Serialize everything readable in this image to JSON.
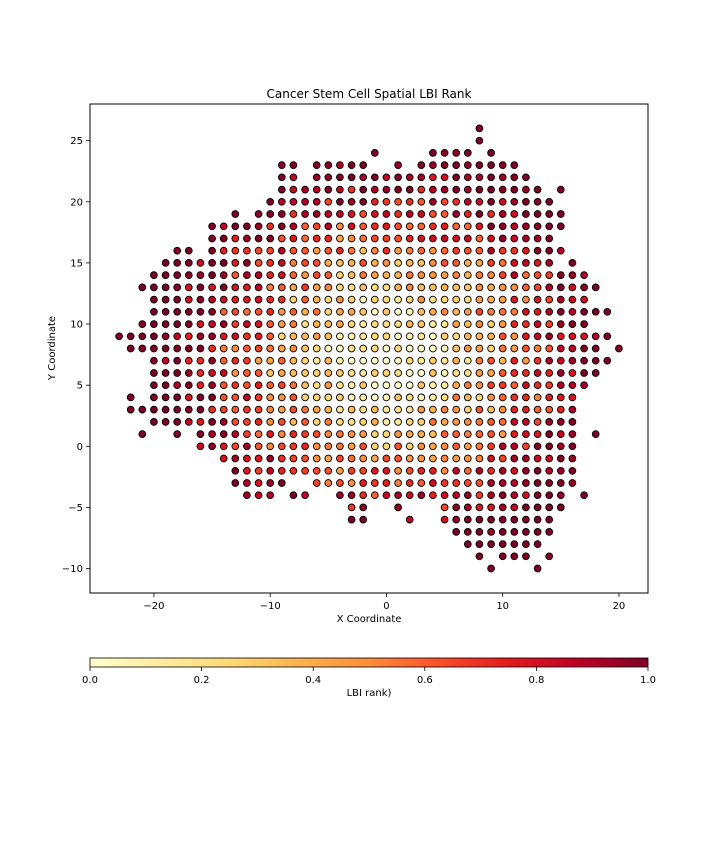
{
  "chart_data": {
    "type": "scatter",
    "title": "Cancer Stem Cell Spatial LBI Rank",
    "xlabel": "X Coordinate",
    "ylabel": "Y Coordinate",
    "xlim": [
      -25.5,
      22.5
    ],
    "ylim": [
      -12,
      28
    ],
    "xticks": [
      -20,
      -10,
      0,
      10,
      20
    ],
    "yticks": [
      -10,
      -5,
      0,
      5,
      10,
      15,
      20,
      25
    ],
    "xtick_labels": [
      "−20",
      "−10",
      "0",
      "10",
      "20"
    ],
    "ytick_labels": [
      "−10",
      "−5",
      "0",
      "5",
      "10",
      "15",
      "20",
      "25"
    ],
    "grid": false,
    "marker": "circle",
    "marker_edgecolor": "#000000",
    "colormap": "YlOrRd",
    "colormap_stops": [
      "#ffffcc",
      "#ffeda0",
      "#fed976",
      "#feb24c",
      "#fd8d3c",
      "#fc4e2a",
      "#e31a1c",
      "#bd0026",
      "#800026"
    ],
    "colorbar": {
      "label": "LBI rank)",
      "orientation": "horizontal",
      "range": [
        0,
        1
      ],
      "ticks": [
        0.0,
        0.2,
        0.4,
        0.6,
        0.8,
        1.0
      ],
      "tick_labels": [
        "0.0",
        "0.2",
        "0.4",
        "0.6",
        "0.8",
        "1.0"
      ]
    },
    "color_model": "LBI rank increases with distance from the tissue centre (approx. x 0, y 7.5); points are reconstructed on the integer grid shown",
    "rows": [
      {
        "y": 26,
        "x": [
          [
            8,
            8
          ]
        ]
      },
      {
        "y": 25,
        "x": [
          [
            8,
            8
          ]
        ]
      },
      {
        "y": 24,
        "x": [
          [
            -1,
            -1
          ],
          [
            4,
            7
          ],
          [
            9,
            9
          ]
        ]
      },
      {
        "y": 23,
        "x": [
          [
            -9,
            -8
          ],
          [
            -6,
            -2
          ],
          [
            1,
            1
          ],
          [
            3,
            11
          ]
        ]
      },
      {
        "y": 22,
        "x": [
          [
            -9,
            -8
          ],
          [
            -6,
            12
          ]
        ]
      },
      {
        "y": 21,
        "x": [
          [
            -9,
            13
          ],
          [
            15,
            15
          ]
        ]
      },
      {
        "y": 20,
        "x": [
          [
            -10,
            14
          ]
        ]
      },
      {
        "y": 19,
        "x": [
          [
            -13,
            -13
          ],
          [
            -11,
            15
          ]
        ]
      },
      {
        "y": 18,
        "x": [
          [
            -15,
            15
          ]
        ]
      },
      {
        "y": 17,
        "x": [
          [
            -15,
            14
          ]
        ]
      },
      {
        "y": 16,
        "x": [
          [
            -18,
            -17
          ],
          [
            -15,
            15
          ]
        ]
      },
      {
        "y": 15,
        "x": [
          [
            -19,
            14
          ],
          [
            16,
            16
          ]
        ]
      },
      {
        "y": 14,
        "x": [
          [
            -20,
            17
          ]
        ]
      },
      {
        "y": 13,
        "x": [
          [
            -21,
            18
          ]
        ]
      },
      {
        "y": 12,
        "x": [
          [
            -20,
            17
          ]
        ]
      },
      {
        "y": 11,
        "x": [
          [
            -20,
            19
          ]
        ]
      },
      {
        "y": 10,
        "x": [
          [
            -21,
            17
          ]
        ]
      },
      {
        "y": 9,
        "x": [
          [
            -23,
            19
          ]
        ]
      },
      {
        "y": 8,
        "x": [
          [
            -22,
            18
          ],
          [
            20,
            20
          ]
        ]
      },
      {
        "y": 7,
        "x": [
          [
            -20,
            19
          ]
        ]
      },
      {
        "y": 6,
        "x": [
          [
            -20,
            18
          ]
        ]
      },
      {
        "y": 5,
        "x": [
          [
            -20,
            17
          ]
        ]
      },
      {
        "y": 4,
        "x": [
          [
            -22,
            -22
          ],
          [
            -20,
            16
          ]
        ]
      },
      {
        "y": 3,
        "x": [
          [
            -22,
            16
          ]
        ]
      },
      {
        "y": 2,
        "x": [
          [
            -20,
            16
          ]
        ]
      },
      {
        "y": 1,
        "x": [
          [
            -21,
            -21
          ],
          [
            -18,
            -18
          ],
          [
            -16,
            16
          ],
          [
            18,
            18
          ]
        ]
      },
      {
        "y": 0,
        "x": [
          [
            -16,
            16
          ]
        ]
      },
      {
        "y": -1,
        "x": [
          [
            -14,
            16
          ]
        ]
      },
      {
        "y": -2,
        "x": [
          [
            -13,
            16
          ]
        ]
      },
      {
        "y": -3,
        "x": [
          [
            -13,
            -9
          ],
          [
            -6,
            16
          ]
        ]
      },
      {
        "y": -4,
        "x": [
          [
            -12,
            -10
          ],
          [
            -8,
            -7
          ],
          [
            -4,
            15
          ],
          [
            17,
            17
          ]
        ]
      },
      {
        "y": -5,
        "x": [
          [
            -3,
            -2
          ],
          [
            1,
            1
          ],
          [
            5,
            15
          ]
        ]
      },
      {
        "y": -6,
        "x": [
          [
            -3,
            -2
          ],
          [
            2,
            2
          ],
          [
            5,
            14
          ]
        ]
      },
      {
        "y": -7,
        "x": [
          [
            6,
            14
          ]
        ]
      },
      {
        "y": -8,
        "x": [
          [
            7,
            13
          ]
        ]
      },
      {
        "y": -9,
        "x": [
          [
            8,
            8
          ],
          [
            10,
            12
          ],
          [
            14,
            14
          ]
        ]
      },
      {
        "y": -10,
        "x": [
          [
            9,
            9
          ],
          [
            13,
            13
          ]
        ]
      }
    ]
  }
}
